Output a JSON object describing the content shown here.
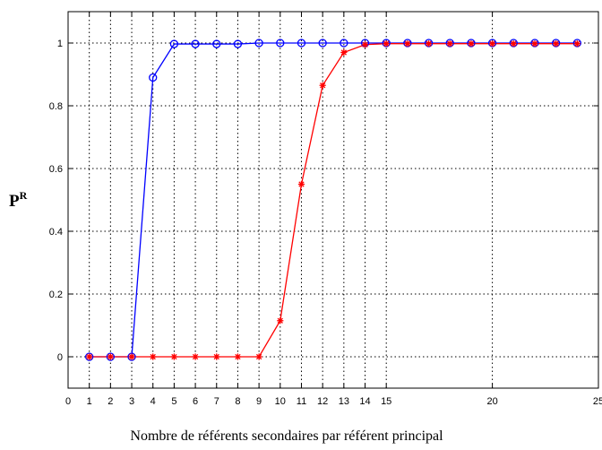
{
  "chart_data": {
    "type": "line",
    "title": "",
    "xlabel": "Nombre de référents secondaires par référent principal",
    "ylabel": "P",
    "ylabel_superscript": "R",
    "xlim": [
      0,
      25
    ],
    "ylim": [
      -0.1,
      1.1
    ],
    "x_ticks": [
      0,
      1,
      2,
      3,
      4,
      5,
      6,
      7,
      8,
      9,
      10,
      11,
      12,
      13,
      14,
      15,
      20,
      25
    ],
    "x_tick_labels": [
      "0",
      "1",
      "2",
      "3",
      "4",
      "5",
      "6",
      "7",
      "8",
      "9",
      "10",
      "11",
      "12",
      "13",
      "14",
      "15",
      "20",
      "25"
    ],
    "y_ticks": [
      0,
      0.2,
      0.4,
      0.6,
      0.8,
      1
    ],
    "y_tick_labels": [
      "0",
      "0.2",
      "0.4",
      "0.6",
      "0.8",
      "1"
    ],
    "x_grid": [
      1,
      2,
      3,
      4,
      5,
      6,
      7,
      8,
      9,
      10,
      11,
      12,
      13,
      14,
      15,
      20
    ],
    "y_grid": [
      0,
      0.2,
      0.4,
      0.6,
      0.8,
      1
    ],
    "grid": true,
    "grid_style": "dotted",
    "x": [
      1,
      2,
      3,
      4,
      5,
      6,
      7,
      8,
      9,
      10,
      11,
      12,
      13,
      14,
      15,
      16,
      17,
      18,
      19,
      20,
      21,
      22,
      23,
      24
    ],
    "series": [
      {
        "color": "#0000ff",
        "marker": "circle",
        "values": [
          0,
          0,
          0,
          0.89,
          0.997,
          0.997,
          0.997,
          0.997,
          1,
          1,
          1,
          1,
          1,
          1,
          1,
          1,
          1,
          1,
          1,
          1,
          1,
          1,
          1,
          1
        ]
      },
      {
        "color": "#ff0000",
        "marker": "star",
        "values": [
          0,
          0,
          0,
          0,
          0,
          0,
          0,
          0,
          0,
          0.115,
          0.55,
          0.865,
          0.97,
          0.995,
          0.998,
          0.998,
          0.998,
          0.998,
          0.998,
          0.998,
          0.998,
          0.998,
          0.998,
          0.998
        ]
      }
    ]
  }
}
